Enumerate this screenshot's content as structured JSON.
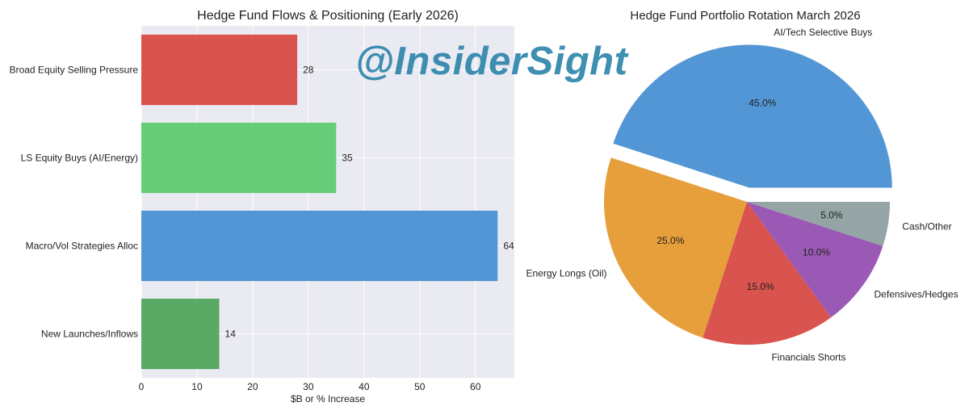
{
  "watermark": "@InsiderSight",
  "chart_data": [
    {
      "type": "bar",
      "orientation": "horizontal",
      "title": "Hedge Fund Flows & Positioning (Early 2026)",
      "xlabel": "$B or % Increase",
      "ylabel": "",
      "categories": [
        "Broad Equity Selling Pressure",
        "LS Equity Buys (AI/Energy)",
        "Macro/Vol Strategies Alloc",
        "New Launches/Inflows"
      ],
      "values": [
        28,
        35,
        64,
        14
      ],
      "colors": [
        "#d9534f",
        "#66cc77",
        "#5296d5",
        "#5aa964"
      ],
      "xlim": [
        0,
        67
      ],
      "xticks": [
        0,
        10,
        20,
        30,
        40,
        50,
        60
      ],
      "grid": true,
      "value_labels": true
    },
    {
      "type": "pie",
      "title": "Hedge Fund Portfolio Rotation March 2026",
      "labels": [
        "AI/Tech Selective Buys",
        "Energy Longs (Oil)",
        "Financials Shorts",
        "Defensives/Hedges",
        "Cash/Other"
      ],
      "values": [
        45.0,
        25.0,
        15.0,
        10.0,
        5.0
      ],
      "pct_labels": [
        "45.0%",
        "25.0%",
        "15.0%",
        "10.0%",
        "5.0%"
      ],
      "colors": [
        "#5296d5",
        "#e69f3a",
        "#d9534f",
        "#9b59b6",
        "#95a5a6"
      ],
      "explode": [
        0.1,
        0,
        0,
        0,
        0
      ],
      "start_angle": 0,
      "direction": "counterclockwise"
    }
  ]
}
